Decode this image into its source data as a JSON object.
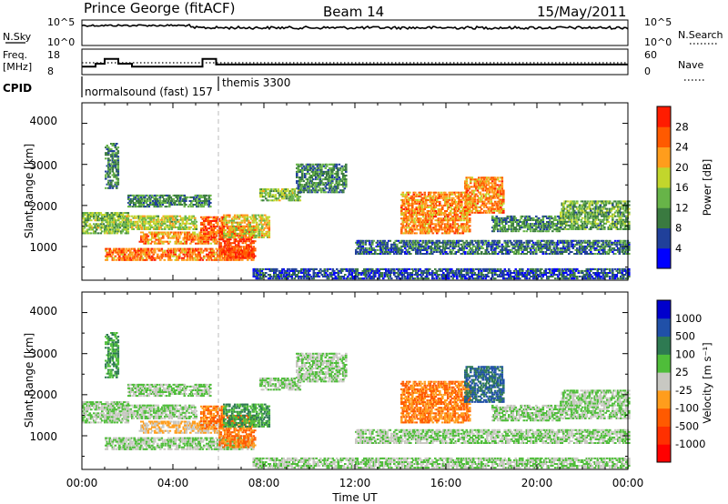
{
  "header": {
    "station": "Prince George (fitACF)",
    "beam": "Beam 14",
    "date": "15/May/2011"
  },
  "noise_panel": {
    "left_label": "N.Sky",
    "right_label": "N.Search",
    "left_ticks": [
      "10^5",
      "10^0"
    ],
    "right_ticks": [
      "10^5",
      "10^0"
    ]
  },
  "freq_panel": {
    "left_label_line1": "Freq.",
    "left_label_line2": "[MHz]",
    "right_label": "Nave",
    "left_ticks": [
      "18",
      "8"
    ],
    "right_ticks": [
      "60",
      "0"
    ],
    "freq_series_mhz": [
      {
        "t": 0.0,
        "f": 11.2
      },
      {
        "t": 0.6,
        "f": 11.2
      },
      {
        "t": 0.6,
        "f": 12.6
      },
      {
        "t": 1.0,
        "f": 12.6
      },
      {
        "t": 1.0,
        "f": 14.8
      },
      {
        "t": 1.6,
        "f": 14.8
      },
      {
        "t": 1.6,
        "f": 12.6
      },
      {
        "t": 2.2,
        "f": 12.6
      },
      {
        "t": 2.2,
        "f": 11.2
      },
      {
        "t": 5.3,
        "f": 11.2
      },
      {
        "t": 5.3,
        "f": 14.8
      },
      {
        "t": 5.9,
        "f": 14.8
      },
      {
        "t": 5.9,
        "f": 12.2
      },
      {
        "t": 24.0,
        "f": 12.2
      }
    ],
    "nave_level": 32
  },
  "cpid": {
    "label": "CPID",
    "segments": [
      {
        "text": "normalsound (fast) 157",
        "start_h": 0
      },
      {
        "text": "themis 3300",
        "start_h": 6
      }
    ]
  },
  "power_panel": {
    "ylabel": "Slant Range [km]",
    "yticks": [
      "4000",
      "3000",
      "2000",
      "1000"
    ],
    "colorbar_label": "Power [dB]",
    "colorbar_ticks": [
      "28",
      "24",
      "20",
      "16",
      "12",
      "8",
      "4"
    ],
    "colorbar_colors": [
      "#0000ff",
      "#20409a",
      "#3a7a40",
      "#67b448",
      "#c2d62c",
      "#ff9d1c",
      "#ff5a00",
      "#ff1c00"
    ]
  },
  "velocity_panel": {
    "ylabel": "Slant Range [km]",
    "yticks": [
      "4000",
      "3000",
      "2000",
      "1000"
    ],
    "colorbar_label": "Velocity [m s⁻¹]",
    "colorbar_ticks": [
      "1000",
      "500",
      "100",
      "25",
      "-25",
      "-100",
      "-500",
      "-1000"
    ],
    "colorbar_colors": [
      "#0000cc",
      "#2050a8",
      "#2e7a52",
      "#4fbd3a",
      "#c8c8c2",
      "#ff9d1c",
      "#ff5a00",
      "#ff3000",
      "#ff0000"
    ]
  },
  "time_axis": {
    "ticks": [
      "00:00",
      "04:00",
      "08:00",
      "12:00",
      "16:00",
      "20:00",
      "00:00"
    ],
    "label": "Time UT"
  },
  "chart_data": {
    "type": "heatmap",
    "title": "Prince George (fitACF) Beam 14 15/May/2011",
    "xlabel": "Time UT",
    "ylabel": "Slant Range [km]",
    "x_range_hours": [
      0,
      24
    ],
    "y_range_km": [
      180,
      4500
    ],
    "annotations": [
      "normalsound (fast) 157",
      "themis 3300"
    ],
    "power_colorbar": {
      "label": "Power [dB]",
      "range": [
        0,
        30
      ],
      "ticks": [
        4,
        8,
        12,
        16,
        20,
        24,
        28
      ]
    },
    "velocity_colorbar": {
      "label": "Velocity [m s-1]",
      "ticks": [
        1000,
        500,
        100,
        25,
        -25,
        -100,
        -500,
        -1000
      ]
    },
    "scatter_regions": [
      {
        "t0": 0.0,
        "t1": 2.0,
        "r0": 1300,
        "r1": 1800,
        "power_db": 14,
        "velocity": 25
      },
      {
        "t0": 1.0,
        "t1": 1.6,
        "r0": 2400,
        "r1": 3500,
        "power_db": 10,
        "velocity": 100
      },
      {
        "t0": 1.8,
        "t1": 5.0,
        "r0": 1400,
        "r1": 1750,
        "power_db": 16,
        "velocity": 25
      },
      {
        "t0": 2.0,
        "t1": 5.6,
        "r0": 1950,
        "r1": 2250,
        "power_db": 10,
        "velocity": 25
      },
      {
        "t0": 2.5,
        "t1": 6.0,
        "r0": 1050,
        "r1": 1350,
        "power_db": 22,
        "velocity": -25
      },
      {
        "t0": 5.2,
        "t1": 6.2,
        "r0": 1150,
        "r1": 1700,
        "power_db": 25,
        "velocity": -100
      },
      {
        "t0": 1.0,
        "t1": 7.5,
        "r0": 650,
        "r1": 950,
        "power_db": 23,
        "velocity": 25
      },
      {
        "t0": 6.0,
        "t1": 7.6,
        "r0": 700,
        "r1": 1500,
        "power_db": 27,
        "velocity": -100
      },
      {
        "t0": 6.2,
        "t1": 8.2,
        "r0": 1200,
        "r1": 1750,
        "power_db": 18,
        "velocity": 100
      },
      {
        "t0": 7.8,
        "t1": 9.6,
        "r0": 2100,
        "r1": 2400,
        "power_db": 14,
        "velocity": 25
      },
      {
        "t0": 9.4,
        "t1": 11.6,
        "r0": 2300,
        "r1": 3000,
        "power_db": 10,
        "velocity": 25
      },
      {
        "t0": 14.0,
        "t1": 17.0,
        "r0": 1300,
        "r1": 2300,
        "power_db": 22,
        "velocity": -100
      },
      {
        "t0": 16.8,
        "t1": 18.5,
        "r0": 1800,
        "r1": 2700,
        "power_db": 22,
        "velocity": 500
      },
      {
        "t0": 18.0,
        "t1": 21.0,
        "r0": 1350,
        "r1": 1750,
        "power_db": 10,
        "velocity": 25
      },
      {
        "t0": 21.0,
        "t1": 24.0,
        "r0": 1400,
        "r1": 2100,
        "power_db": 12,
        "velocity": 25
      },
      {
        "t0": 7.5,
        "t1": 24.0,
        "r0": 200,
        "r1": 450,
        "power_db": 6,
        "velocity": 25
      },
      {
        "t0": 12.0,
        "t1": 24.0,
        "r0": 800,
        "r1": 1150,
        "power_db": 8,
        "velocity": 25
      }
    ]
  }
}
